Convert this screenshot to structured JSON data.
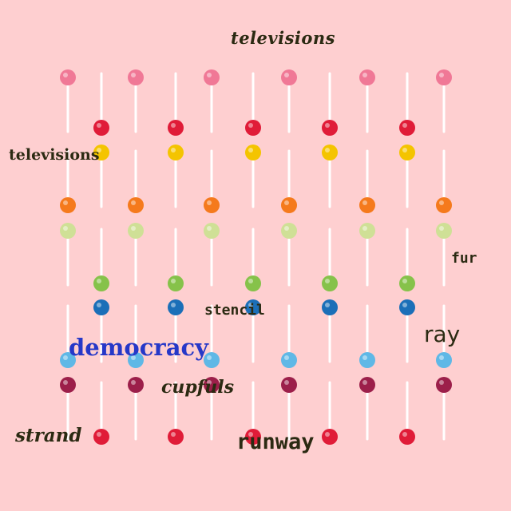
{
  "background_color": "#fecfd0",
  "candy_colors": {
    "pink": "#f07896",
    "red": "#e01c38",
    "yellow": "#f4c400",
    "orange": "#f57a1c",
    "pale_green": "#cfe096",
    "green": "#86c24a",
    "blue": "#1b6fb8",
    "light_blue": "#5fb8e6",
    "maroon": "#9c1f4a",
    "stick": "#ffffff"
  },
  "words": {
    "top_televisions": "televisions",
    "left_televisions": "televisions",
    "fur": "fur",
    "stencil": "stencil",
    "ray": "ray",
    "democracy": "democracy",
    "cupfuls": "cupfuls",
    "strand": "strand",
    "runway": "runway"
  },
  "word_colors": {
    "dark": "#2b2a12",
    "blue": "#2638c8"
  }
}
